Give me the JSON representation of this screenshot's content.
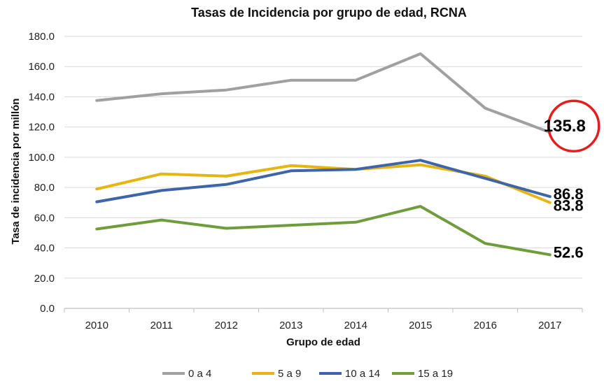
{
  "chart_data": {
    "type": "line",
    "title": "Tasas de Incidencia por grupo de edad, RCNA",
    "xlabel": "Grupo de edad",
    "ylabel": "Tasa de incidencia por millón",
    "categories": [
      "2010",
      "2011",
      "2012",
      "2013",
      "2014",
      "2015",
      "2016",
      "2017"
    ],
    "ylim": [
      0,
      180
    ],
    "y_ticks": [
      "0.0",
      "20.0",
      "40.0",
      "60.0",
      "80.0",
      "100.0",
      "120.0",
      "140.0",
      "160.0",
      "180.0"
    ],
    "grid": "horizontal",
    "legend_position": "bottom",
    "series": [
      {
        "name": "0 a 4",
        "color": "#a0a0a0",
        "values": [
          137.5,
          142,
          144.5,
          151,
          151,
          168.5,
          132.5,
          116.5
        ]
      },
      {
        "name": "5 a 9",
        "color": "#e6b511",
        "values": [
          79,
          89,
          87.5,
          94.5,
          92,
          95,
          87.5,
          70
        ]
      },
      {
        "name": "10 a 14",
        "color": "#3e64a9",
        "values": [
          70.5,
          78,
          82,
          91,
          92,
          98,
          86,
          74
        ]
      },
      {
        "name": "15 a 19",
        "color": "#6f9d3c",
        "values": [
          52.5,
          58.5,
          53,
          55,
          57,
          67.5,
          43,
          35.5
        ]
      }
    ],
    "annotations": [
      {
        "text": "135.8",
        "series": "0 a 4",
        "highlight": "red-circle",
        "circle_color": "#e41e1e"
      },
      {
        "text": "86.8",
        "series": "10 a 14"
      },
      {
        "text": "83.8",
        "series": "5 a 9"
      },
      {
        "text": "52.6",
        "series": "15 a 19"
      }
    ]
  }
}
